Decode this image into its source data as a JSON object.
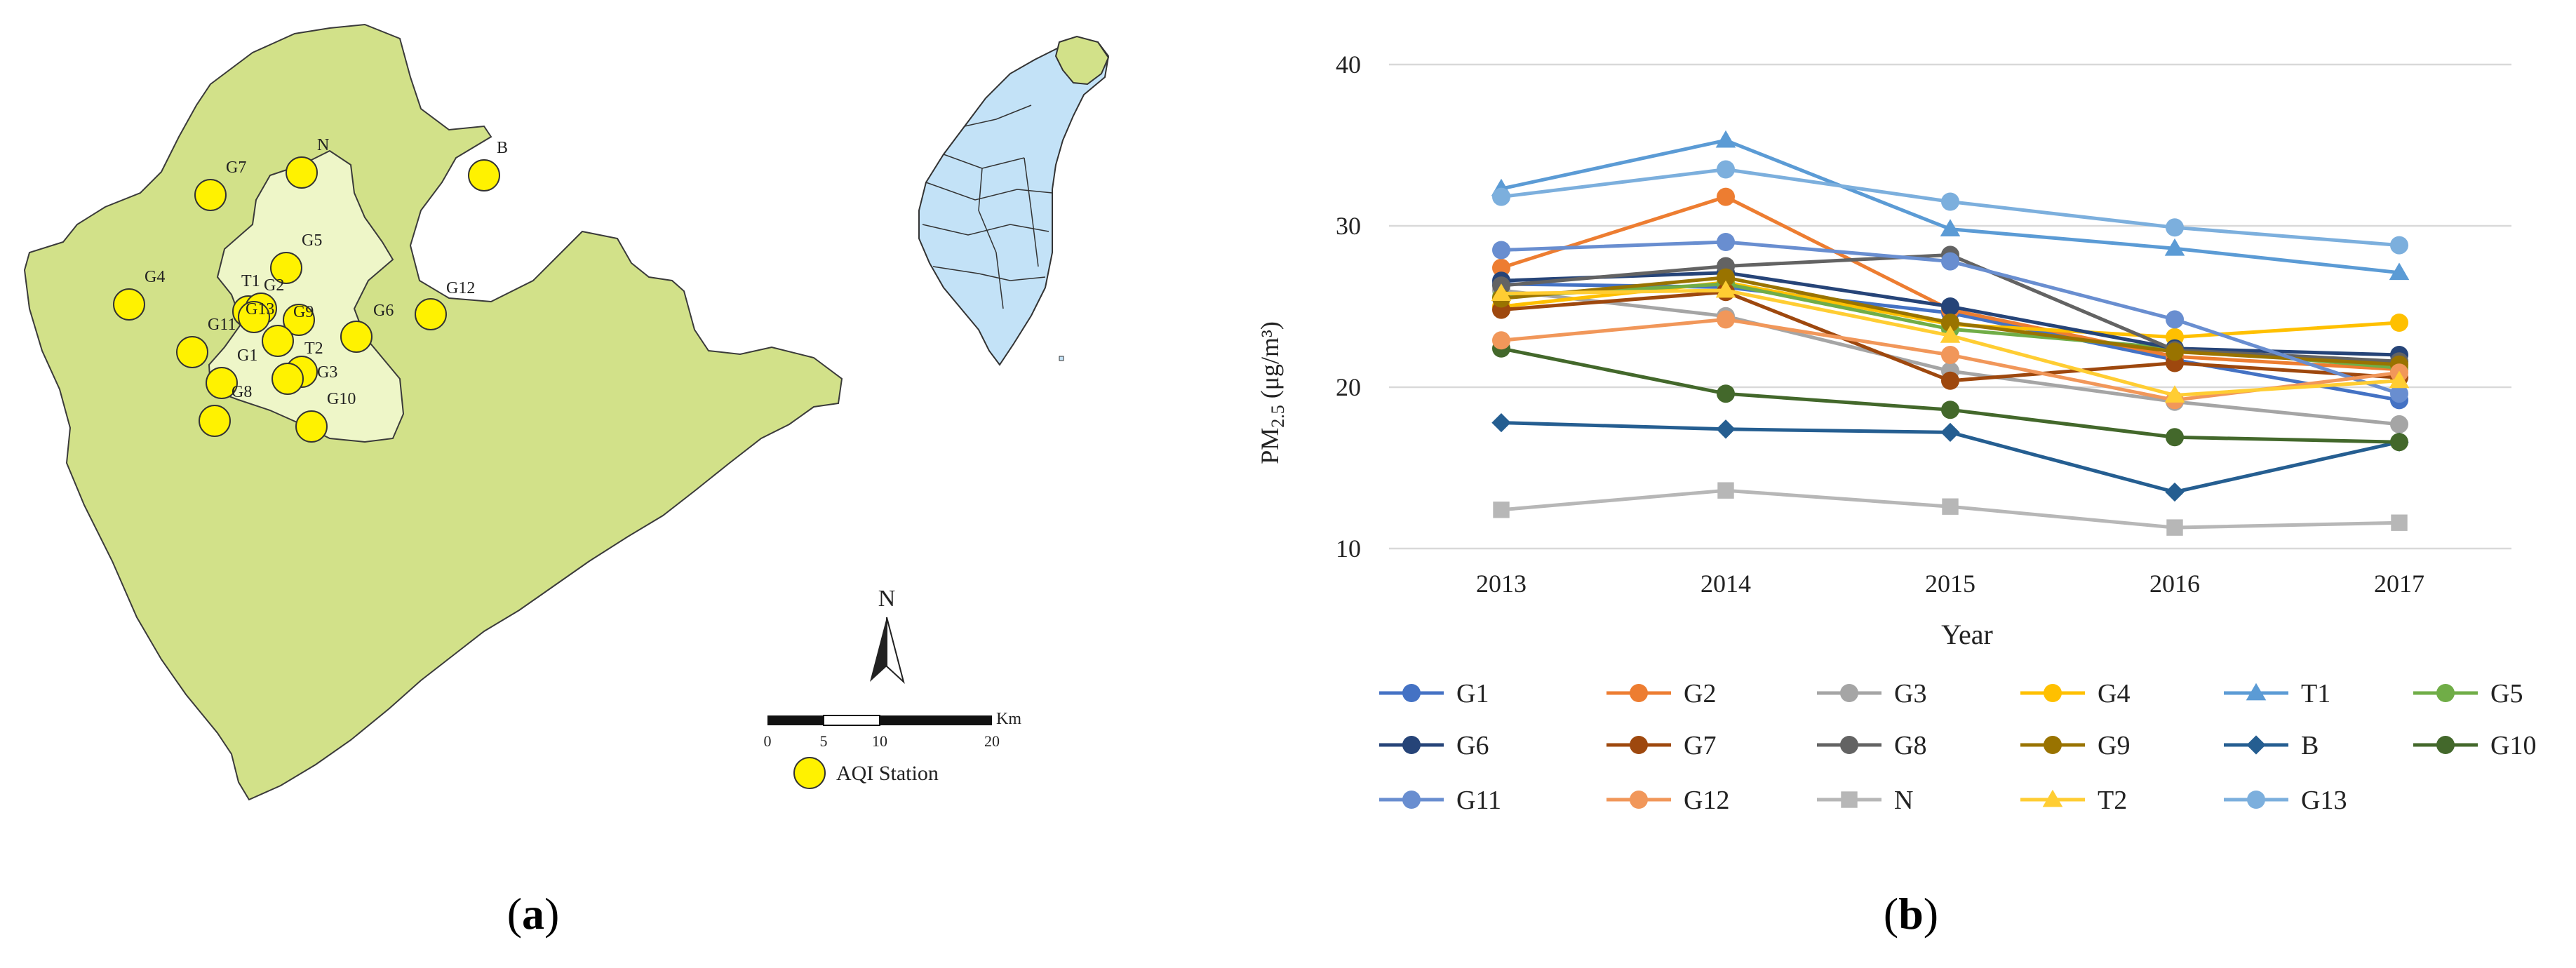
{
  "panel_a": {
    "caption": "(a)",
    "caption_letter": "a",
    "north_label": "N",
    "scale_unit": "Km",
    "scale_ticks": [
      "0",
      "5",
      "10",
      "20"
    ],
    "legend_label": "AQI Station",
    "stations": [
      "G7",
      "N",
      "B",
      "G5",
      "G4",
      "T1",
      "G2",
      "G13",
      "G9",
      "G11",
      "G6",
      "G12",
      "G1",
      "T2",
      "G3",
      "G8",
      "G10"
    ]
  },
  "panel_b": {
    "caption": "(b)",
    "caption_letter": "b"
  },
  "chart_data": {
    "type": "line",
    "title": "",
    "xlabel": "Year",
    "ylabel": "PM2.5 (μg/m³)",
    "ylabel_parts": {
      "base": "PM",
      "sub": "2.5",
      "rest": " (μg/m³)"
    },
    "x": [
      2013,
      2014,
      2015,
      2016,
      2017
    ],
    "ylim": [
      10,
      40
    ],
    "yticks": [
      10,
      20,
      30,
      40
    ],
    "grid": true,
    "legend_position": "bottom",
    "series": [
      {
        "name": "G1",
        "color": "#4472C4",
        "marker": "circle",
        "values": [
          26.4,
          26.2,
          24.6,
          21.7,
          19.2
        ]
      },
      {
        "name": "G2",
        "color": "#ED7D31",
        "marker": "circle",
        "values": [
          27.4,
          31.8,
          24.8,
          21.9,
          21.1
        ]
      },
      {
        "name": "G3",
        "color": "#A5A5A5",
        "marker": "circle",
        "values": [
          26.0,
          24.4,
          21.0,
          19.1,
          17.7
        ]
      },
      {
        "name": "G4",
        "color": "#FFC000",
        "marker": "circle",
        "values": [
          25.0,
          26.5,
          23.9,
          23.1,
          24.0
        ]
      },
      {
        "name": "T1",
        "color": "#5B9BD5",
        "marker": "triangle",
        "values": [
          32.3,
          35.3,
          29.8,
          28.6,
          27.1
        ]
      },
      {
        "name": "G5",
        "color": "#70AD47",
        "marker": "circle",
        "values": [
          25.6,
          26.4,
          23.6,
          22.4,
          21.2
        ]
      },
      {
        "name": "G6",
        "color": "#264478",
        "marker": "circle",
        "values": [
          26.6,
          27.1,
          25.0,
          22.4,
          22.0
        ]
      },
      {
        "name": "G7",
        "color": "#9E480E",
        "marker": "circle",
        "values": [
          24.8,
          25.9,
          20.4,
          21.5,
          20.6
        ]
      },
      {
        "name": "G8",
        "color": "#636363",
        "marker": "circle",
        "values": [
          26.3,
          27.5,
          28.2,
          22.3,
          21.6
        ]
      },
      {
        "name": "G9",
        "color": "#997300",
        "marker": "circle",
        "values": [
          25.5,
          26.8,
          24.0,
          22.2,
          21.4
        ]
      },
      {
        "name": "B",
        "color": "#255E91",
        "marker": "diamond",
        "values": [
          17.8,
          17.4,
          17.2,
          13.5,
          16.6
        ]
      },
      {
        "name": "G10",
        "color": "#43682B",
        "marker": "circle",
        "values": [
          22.4,
          19.6,
          18.6,
          16.9,
          16.6
        ]
      },
      {
        "name": "G11",
        "color": "#698ED0",
        "marker": "circle",
        "values": [
          28.5,
          29.0,
          27.8,
          24.2,
          19.6
        ]
      },
      {
        "name": "G12",
        "color": "#F1975A",
        "marker": "circle",
        "values": [
          22.9,
          24.2,
          22.0,
          19.2,
          20.9
        ]
      },
      {
        "name": "N",
        "color": "#B7B7B7",
        "marker": "square",
        "values": [
          12.4,
          13.6,
          12.6,
          11.3,
          11.6
        ]
      },
      {
        "name": "T2",
        "color": "#FFCD33",
        "marker": "triangle",
        "values": [
          25.8,
          26.0,
          23.2,
          19.5,
          20.4
        ]
      },
      {
        "name": "G13",
        "color": "#7CAFDD",
        "marker": "circle",
        "values": [
          31.8,
          33.5,
          31.5,
          29.9,
          28.8
        ]
      }
    ]
  }
}
